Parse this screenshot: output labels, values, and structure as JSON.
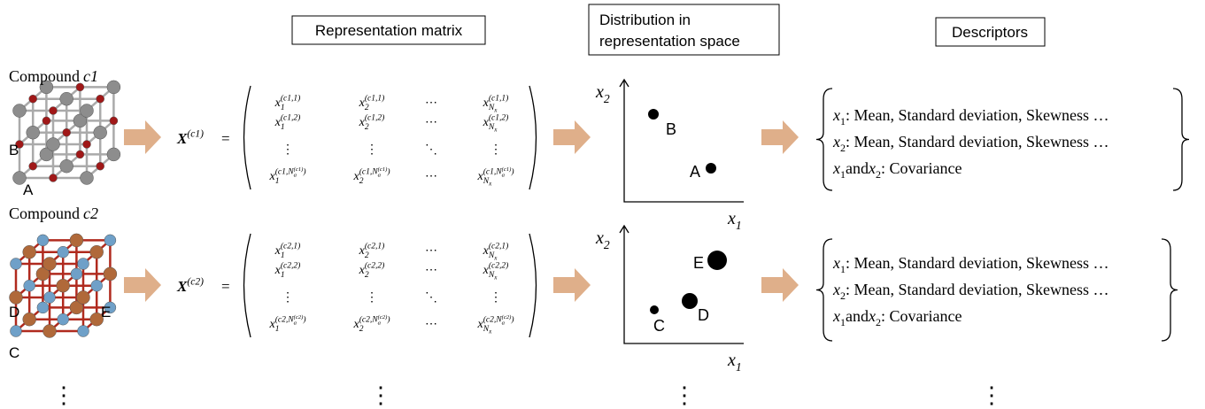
{
  "headers": {
    "matrix": "Representation matrix",
    "distribution": [
      "Distribution in",
      "representation space"
    ],
    "descriptors": "Descriptors"
  },
  "equals": "=",
  "ellipsis": "⋮",
  "compounds": [
    {
      "label": "Compound",
      "name": "c1",
      "atoms": [
        "A",
        "B"
      ],
      "matrix_symbol": {
        "base": "X",
        "sup": "(c1)"
      },
      "matrix_rows": [
        [
          {
            "base": "x",
            "sub": "1",
            "sup": "(c1,1)"
          },
          {
            "base": "x",
            "sub": "2",
            "sup": "(c1,1)"
          },
          {
            "base": "⋯"
          },
          {
            "base": "x",
            "sub": "N",
            "sub_sub": "x",
            "sup": "(c1,1)"
          }
        ],
        [
          {
            "base": "x",
            "sub": "1",
            "sup": "(c1,2)"
          },
          {
            "base": "x",
            "sub": "2",
            "sup": "(c1,2)"
          },
          {
            "base": "⋯"
          },
          {
            "base": "x",
            "sub": "N",
            "sub_sub": "x",
            "sup": "(c1,2)"
          }
        ],
        [
          {
            "base": "⋮"
          },
          {
            "base": "⋮"
          },
          {
            "base": "⋱"
          },
          {
            "base": "⋮"
          }
        ],
        [
          {
            "base": "x",
            "sub": "1",
            "sup": "(c1,N",
            "sup_sub": "a",
            "sup_sup": "(c1)",
            "sup_end": ")"
          },
          {
            "base": "x",
            "sub": "2",
            "sup": "(c1,N",
            "sup_sub": "a",
            "sup_sup": "(c1)",
            "sup_end": ")"
          },
          {
            "base": "⋯"
          },
          {
            "base": "x",
            "sub": "N",
            "sub_sub": "x",
            "sup": "(c1,N",
            "sup_sub": "a",
            "sup_sup": "(c1)",
            "sup_end": ")"
          }
        ]
      ],
      "plot": {
        "x_label": {
          "base": "x",
          "sub": "1"
        },
        "y_label": {
          "base": "x",
          "sub": "2"
        },
        "points": [
          "B",
          "A"
        ]
      },
      "descriptors": [
        [
          {
            "text": "x",
            "sub": "1"
          },
          {
            "text": " : Mean, Standard deviation, Skewness …"
          }
        ],
        [
          {
            "text": "x",
            "sub": "2"
          },
          {
            "text": " : Mean, Standard deviation, Skewness …"
          }
        ],
        [
          {
            "text": "x",
            "sub": "1"
          },
          {
            "text": " and "
          },
          {
            "text": "x",
            "sub": "2"
          },
          {
            "text": " : Covariance"
          }
        ]
      ]
    },
    {
      "label": "Compound",
      "name": "c2",
      "atoms": [
        "D",
        "E",
        "C"
      ],
      "matrix_symbol": {
        "base": "X",
        "sup": "(c2)"
      },
      "matrix_rows": [
        [
          {
            "base": "x",
            "sub": "1",
            "sup": "(c2,1)"
          },
          {
            "base": "x",
            "sub": "2",
            "sup": "(c2,1)"
          },
          {
            "base": "⋯"
          },
          {
            "base": "x",
            "sub": "N",
            "sub_sub": "x",
            "sup": "(c2,1)"
          }
        ],
        [
          {
            "base": "x",
            "sub": "1",
            "sup": "(c2,2)"
          },
          {
            "base": "x",
            "sub": "2",
            "sup": "(c2,2)"
          },
          {
            "base": "⋯"
          },
          {
            "base": "x",
            "sub": "N",
            "sub_sub": "x",
            "sup": "(c2,2)"
          }
        ],
        [
          {
            "base": "⋮"
          },
          {
            "base": "⋮"
          },
          {
            "base": "⋱"
          },
          {
            "base": "⋮"
          }
        ],
        [
          {
            "base": "x",
            "sub": "1",
            "sup": "(c2,N",
            "sup_sub": "a",
            "sup_sup": "(c2)",
            "sup_end": ")"
          },
          {
            "base": "x",
            "sub": "2",
            "sup": "(c2,N",
            "sup_sub": "a",
            "sup_sup": "(c2)",
            "sup_end": ")"
          },
          {
            "base": "⋯"
          },
          {
            "base": "x",
            "sub": "N",
            "sub_sub": "x",
            "sup": "(c2,N",
            "sup_sub": "a",
            "sup_sup": "(c2)",
            "sup_end": ")"
          }
        ]
      ],
      "plot": {
        "x_label": {
          "base": "x",
          "sub": "1"
        },
        "y_label": {
          "base": "x",
          "sub": "2"
        },
        "points": [
          "E",
          "D",
          "C"
        ]
      },
      "descriptors": [
        [
          {
            "text": "x",
            "sub": "1"
          },
          {
            "text": " : Mean, Standard deviation, Skewness …"
          }
        ],
        [
          {
            "text": "x",
            "sub": "2"
          },
          {
            "text": " : Mean, Standard deviation, Skewness …"
          }
        ],
        [
          {
            "text": "x",
            "sub": "1"
          },
          {
            "text": " and "
          },
          {
            "text": "x",
            "sub": "2"
          },
          {
            "text": " : Covariance"
          }
        ]
      ]
    }
  ]
}
